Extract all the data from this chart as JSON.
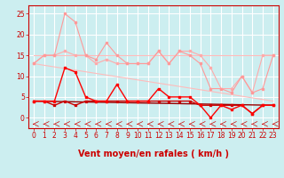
{
  "background_color": "#cceef0",
  "grid_color": "#aadddd",
  "xlabel": "Vent moyen/en rafales ( km/h )",
  "xlim": [
    -0.5,
    23.5
  ],
  "ylim": [
    -2.5,
    27
  ],
  "yticks": [
    0,
    5,
    10,
    15,
    20,
    25
  ],
  "xticks": [
    0,
    1,
    2,
    3,
    4,
    5,
    6,
    7,
    8,
    9,
    10,
    11,
    12,
    13,
    14,
    15,
    16,
    17,
    18,
    19,
    20,
    21,
    22,
    23
  ],
  "line1_x": [
    0,
    1,
    2,
    3,
    4,
    5,
    6,
    7,
    8,
    9,
    10,
    11,
    12,
    13,
    14,
    15,
    16,
    17,
    18,
    19,
    20,
    21,
    22,
    23
  ],
  "line1_y": [
    13,
    15,
    15,
    25,
    23,
    15,
    14,
    18,
    15,
    13,
    13,
    13,
    16,
    13,
    16,
    15,
    13,
    7,
    7,
    6,
    10,
    6,
    7,
    15
  ],
  "line1_color": "#ff9999",
  "line2_x": [
    0,
    1,
    2,
    3,
    4,
    5,
    6,
    7,
    8,
    9,
    10,
    11,
    12,
    13,
    14,
    15,
    16,
    17,
    18,
    19,
    20,
    21,
    22,
    23
  ],
  "line2_y": [
    13,
    15,
    15,
    16,
    15,
    15,
    13,
    14,
    13,
    13,
    13,
    13,
    16,
    13,
    16,
    16,
    15,
    12,
    7,
    7,
    10,
    6,
    15,
    15
  ],
  "line2_color": "#ffaaaa",
  "line3_x": [
    0,
    23
  ],
  "line3_y": [
    15,
    15
  ],
  "line3_color": "#ffbbbb",
  "line4_x": [
    0,
    23
  ],
  "line4_y": [
    13,
    4
  ],
  "line4_color": "#ffbbbb",
  "line5_x": [
    0,
    1,
    2,
    3,
    4,
    5,
    6,
    7,
    8,
    9,
    10,
    11,
    12,
    13,
    14,
    15,
    16,
    17,
    18,
    19,
    20,
    21,
    22,
    23
  ],
  "line5_y": [
    4,
    4,
    4,
    12,
    11,
    5,
    4,
    4,
    8,
    4,
    4,
    4,
    7,
    5,
    5,
    5,
    3,
    0,
    3,
    2,
    3,
    1,
    3,
    3
  ],
  "line5_color": "#ff0000",
  "line6_x": [
    0,
    1,
    2,
    3,
    4,
    5,
    6,
    7,
    8,
    9,
    10,
    11,
    12,
    13,
    14,
    15,
    16,
    17,
    18,
    19,
    20,
    21,
    22,
    23
  ],
  "line6_y": [
    4,
    4,
    3,
    4,
    3,
    4,
    4,
    4,
    4,
    4,
    4,
    4,
    4,
    4,
    4,
    4,
    3,
    3,
    3,
    3,
    3,
    1,
    3,
    3
  ],
  "line6_color": "#cc0000",
  "line7_x": [
    0,
    23
  ],
  "line7_y": [
    4,
    3
  ],
  "line7_color": "#990000",
  "font_size_xlabel": 7,
  "tick_fontsize": 5.5
}
